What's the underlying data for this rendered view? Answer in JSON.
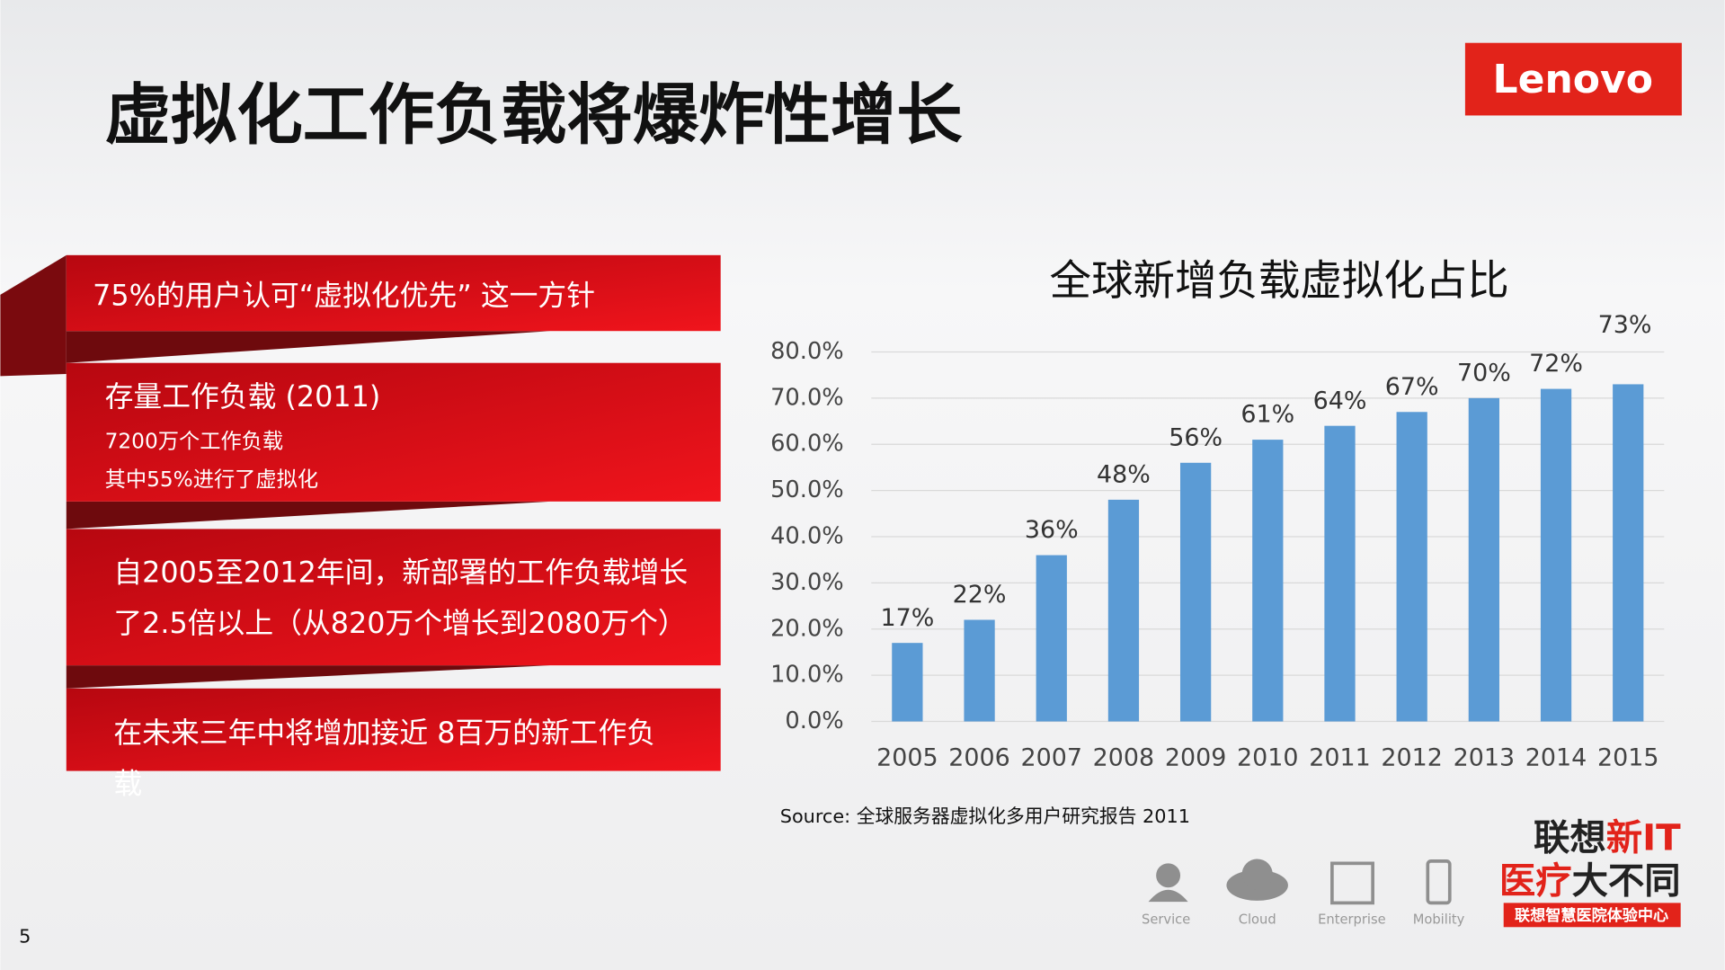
{
  "slide_title": "虚拟化工作负载将爆炸性增长",
  "logo": "Lenovo",
  "bullets": [
    {
      "lines": [
        "75%的用户认可“虚拟化优先” 这一方针"
      ]
    },
    {
      "lines": [
        "存量工作负载 (2011)",
        "7200万个工作负载",
        "其中55%进行了虚拟化"
      ]
    },
    {
      "lines": [
        "自2005至2012年间，新部署的工作负载增长",
        "了2.5倍以上（从820万个增长到2080万个）"
      ]
    },
    {
      "lines": [
        "在未来三年中将增加接近 8百万的新工作负",
        "载"
      ]
    }
  ],
  "chart_data": {
    "type": "bar",
    "title": "全球新增负载虚拟化占比",
    "categories": [
      "2005",
      "2006",
      "2007",
      "2008",
      "2009",
      "2010",
      "2011",
      "2012",
      "2013",
      "2014",
      "2015"
    ],
    "values": [
      17,
      22,
      36,
      48,
      56,
      61,
      64,
      67,
      70,
      72,
      73
    ],
    "value_labels": [
      "17%",
      "22%",
      "36%",
      "48%",
      "56%",
      "61%",
      "64%",
      "67%",
      "70%",
      "72%",
      "73%"
    ],
    "color": "#5b9bd5",
    "ylim": [
      0,
      80
    ],
    "yticks": [
      {
        "value": 0,
        "label": "0.0%"
      },
      {
        "value": 10,
        "label": "10.0%"
      },
      {
        "value": 20,
        "label": "20.0%"
      },
      {
        "value": 30,
        "label": "30.0%"
      },
      {
        "value": 40,
        "label": "40.0%"
      },
      {
        "value": 50,
        "label": "50.0%"
      },
      {
        "value": 60,
        "label": "60.0%"
      },
      {
        "value": 70,
        "label": "70.0%"
      },
      {
        "value": 80,
        "label": "80.0%"
      }
    ],
    "grid": true
  },
  "source": "Source: 全球服务器虚拟化多用户研究报告 2011",
  "footer_icons": [
    "Service",
    "Cloud",
    "Enterprise",
    "Mobility"
  ],
  "brand": {
    "line1a": "联想",
    "line1b": "新IT",
    "line2a": "医疗",
    "line2b": "大不同",
    "line3": "联想智慧医院体验中心"
  },
  "page_number": "5"
}
